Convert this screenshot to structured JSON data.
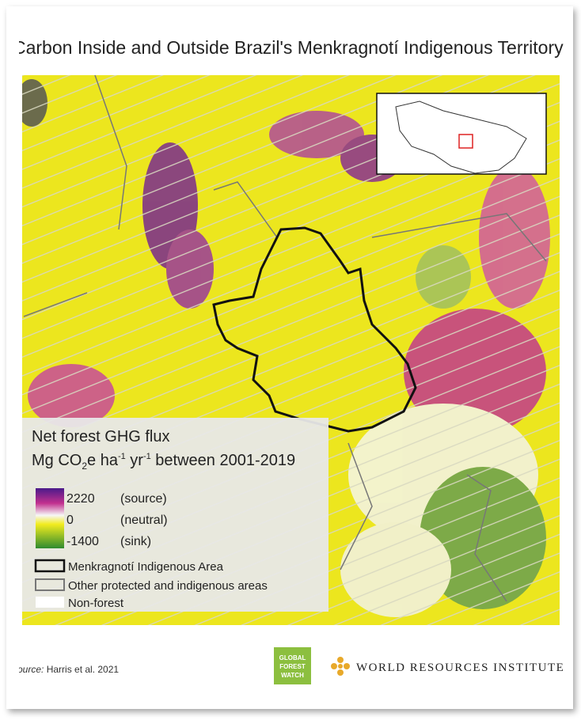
{
  "header": {
    "title": "Carbon Inside and Outside Brazil's Menkragnotí Indigenous Territory"
  },
  "legend": {
    "title": "Net forest GHG flux",
    "unit_parts": [
      "Mg CO",
      "2",
      "e ha",
      "-1",
      " yr",
      "-1",
      " between 2001-2019"
    ],
    "scale": [
      {
        "value": 2220,
        "note": "(source)"
      },
      {
        "value": 0,
        "note": "(neutral)"
      },
      {
        "value": -1400,
        "note": "(sink)"
      }
    ],
    "areas": [
      "Menkragnotí Indigenous Area",
      "Other protected and indigenous areas",
      "Non-forest"
    ]
  },
  "footer": {
    "source_label": "Source:",
    "source": "Harris et al. 2021",
    "gfw_logo": [
      "GLOBAL",
      "FOREST",
      "WATCH"
    ],
    "wri_logo": "WORLD RESOURCES INSTITUTE"
  }
}
